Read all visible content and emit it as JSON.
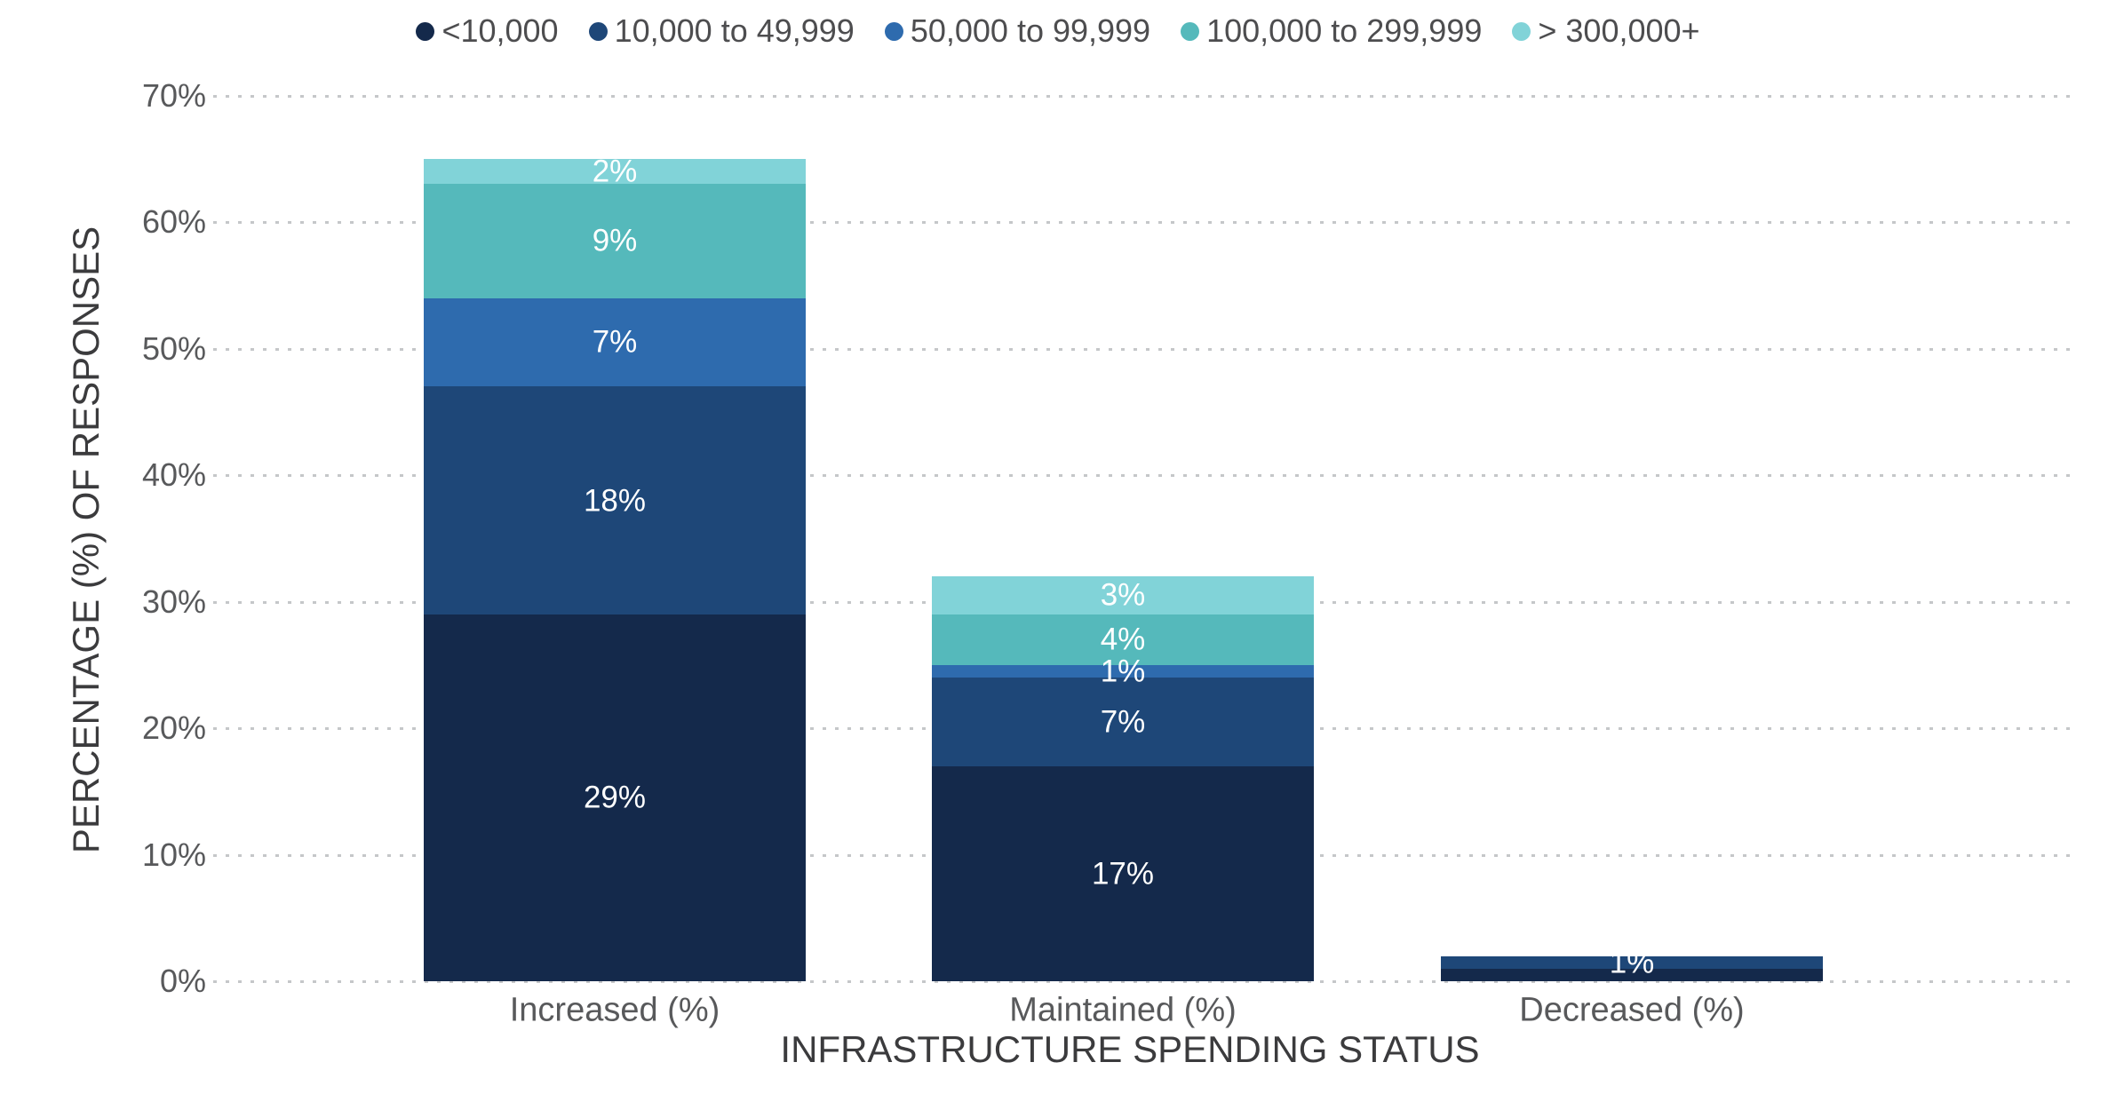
{
  "chart_data": {
    "type": "bar",
    "stacked": true,
    "title": "",
    "xlabel": "INFRASTRUCTURE SPENDING STATUS",
    "ylabel": "PERCENTAGE (%) OF RESPONSES",
    "categories": [
      "Increased (%)",
      "Maintained (%)",
      "Decreased (%)"
    ],
    "series": [
      {
        "name": "<10,000",
        "color": "#14294B",
        "values": [
          29,
          17,
          1
        ],
        "labels": [
          "29%",
          "17%",
          ""
        ]
      },
      {
        "name": "10,000 to 49,999",
        "color": "#1E4778",
        "values": [
          18,
          7,
          1
        ],
        "labels": [
          "18%",
          "7%",
          "1%"
        ]
      },
      {
        "name": "50,000 to 99,999",
        "color": "#2E6BAE",
        "values": [
          7,
          1,
          0
        ],
        "labels": [
          "7%",
          "1%",
          ""
        ]
      },
      {
        "name": "100,000 to 299,999",
        "color": "#55B9BB",
        "values": [
          9,
          4,
          0
        ],
        "labels": [
          "9%",
          "4%",
          ""
        ]
      },
      {
        "name": "> 300,000+",
        "color": "#81D3D8",
        "values": [
          2,
          3,
          0
        ],
        "labels": [
          "2%",
          "3%",
          ""
        ]
      }
    ],
    "stack_totals": [
      65,
      32,
      2
    ],
    "yticks": [
      0,
      10,
      20,
      30,
      40,
      50,
      60,
      70
    ],
    "ytick_labels": [
      "0%",
      "10%",
      "20%",
      "30%",
      "40%",
      "50%",
      "60%",
      "70%"
    ],
    "ylim": [
      0,
      70
    ],
    "grid": "horizontal-dotted",
    "legend_position": "top-center",
    "value_label_color": "#FFFFFF"
  },
  "colors": {
    "background": "#FFFFFF",
    "grid_dots": "#C5C7C9",
    "tick_text": "#58595B",
    "legend_text": "#4D4D4F",
    "axis_title_text": "#3B3B3D"
  }
}
